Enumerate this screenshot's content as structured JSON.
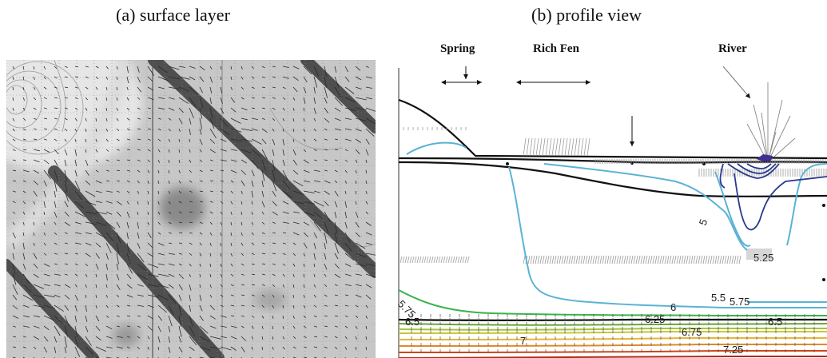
{
  "figure": {
    "panel_a": {
      "caption": "(a) surface layer"
    },
    "panel_b": {
      "caption": "(b) profile view",
      "regions": [
        "Spring",
        "Rich Fen",
        "River"
      ],
      "contour_labels": [
        "5",
        "5.25",
        "5.5",
        "5.75",
        "5.75",
        "6",
        "6.25",
        "6.5",
        "6.5",
        "6.75",
        "7",
        "7.25"
      ]
    }
  },
  "colors": {
    "panel_a_background": "#c9c9c9",
    "contour_blue": "#5bb3d4",
    "river_contour": "#2b3a8c",
    "contour_green": "#39b54a",
    "contour_olive": "#a4c43a",
    "contour_orange": "#e08a2a",
    "contour_red": "#d0451b"
  }
}
